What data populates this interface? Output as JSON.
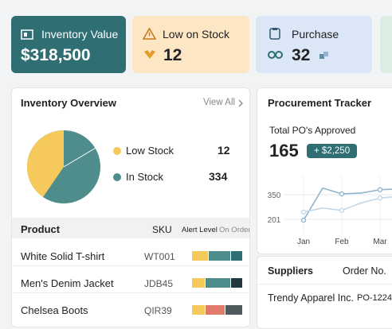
{
  "cards": [
    {
      "label": "Inventory Value",
      "value": "$318,500"
    },
    {
      "label": "Low on Stock",
      "value": "12"
    },
    {
      "label": "Purchase",
      "value": "32"
    }
  ],
  "overview": {
    "title": "Inventory Overview",
    "link": "View All",
    "legend": [
      {
        "label": "Low Stock",
        "value": "12"
      },
      {
        "label": "In Stock",
        "value": "334"
      }
    ],
    "table": {
      "header": [
        "Product",
        "SKU",
        "Alert Level",
        "On Order"
      ],
      "rows": [
        [
          "White Solid T-shirt",
          "WT001"
        ],
        [
          "Men's Denim Jacket",
          "JDB45"
        ],
        [
          "Chelsea Boots",
          "QIR39"
        ]
      ]
    }
  },
  "procurement": {
    "title": "Procurement Tracker",
    "subtitle": "Total PO's Approved",
    "total": "165",
    "badge": "+ $2,250"
  },
  "chart_data": {
    "type": "line",
    "categories": [
      null,
      "Jan",
      null,
      "Feb",
      null,
      "Mar",
      null
    ],
    "series": [
      {
        "color": "#8fb3cc",
        "values": [
          null,
          196,
          390,
          355,
          360,
          380,
          385
        ]
      },
      {
        "color": "#c3d8e6",
        "values": [
          null,
          245,
          270,
          255,
          300,
          330,
          340
        ]
      }
    ],
    "ylim": [
      110,
      470
    ],
    "yticks": [
      201,
      350
    ],
    "grid": true
  },
  "suppliers": {
    "header": [
      "Suppliers",
      "Order No."
    ],
    "rows": [
      [
        "Trendy Apparel Inc.",
        "PO-1224"
      ]
    ]
  }
}
